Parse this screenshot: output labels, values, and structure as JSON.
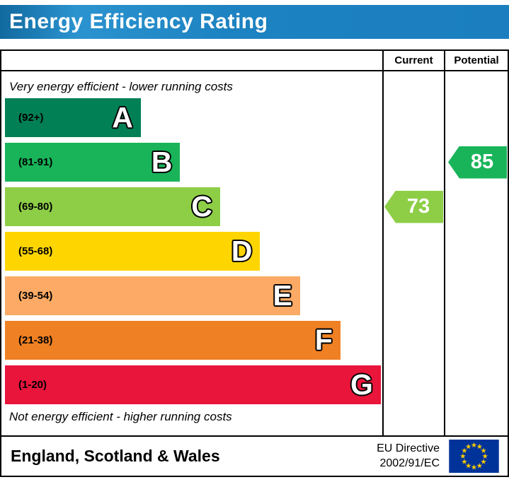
{
  "title": "Energy Efficiency Rating",
  "title_bar_color": "#1b7fbf",
  "columns": {
    "current": "Current",
    "potential": "Potential"
  },
  "notes": {
    "top": "Very energy efficient - lower running costs",
    "bottom": "Not energy efficient - higher running costs"
  },
  "footer": {
    "region": "England, Scotland & Wales",
    "directive": [
      "EU Directive",
      "2002/91/EC"
    ],
    "flag": {
      "name": "eu-flag-icon",
      "field": "#003399",
      "stars": "#ffcc00"
    }
  },
  "chart_data": {
    "type": "bar",
    "title": "Energy Efficiency Rating",
    "bands": [
      {
        "letter": "A",
        "range": "(92+)",
        "color": "#008054",
        "width_pct": 36
      },
      {
        "letter": "B",
        "range": "(81-91)",
        "color": "#19b459",
        "width_pct": 46.4
      },
      {
        "letter": "C",
        "range": "(69-80)",
        "color": "#8dce46",
        "width_pct": 57
      },
      {
        "letter": "D",
        "range": "(55-68)",
        "color": "#ffd500",
        "width_pct": 67.6
      },
      {
        "letter": "E",
        "range": "(39-54)",
        "color": "#fcaa65",
        "width_pct": 78.2
      },
      {
        "letter": "F",
        "range": "(21-38)",
        "color": "#ef8023",
        "width_pct": 88.9
      },
      {
        "letter": "G",
        "range": "(1-20)",
        "color": "#e9153b",
        "width_pct": 99.6
      }
    ],
    "current": {
      "value": 73,
      "band": "C",
      "color": "#8dce46"
    },
    "potential": {
      "value": 85,
      "band": "B",
      "color": "#19b459"
    }
  }
}
